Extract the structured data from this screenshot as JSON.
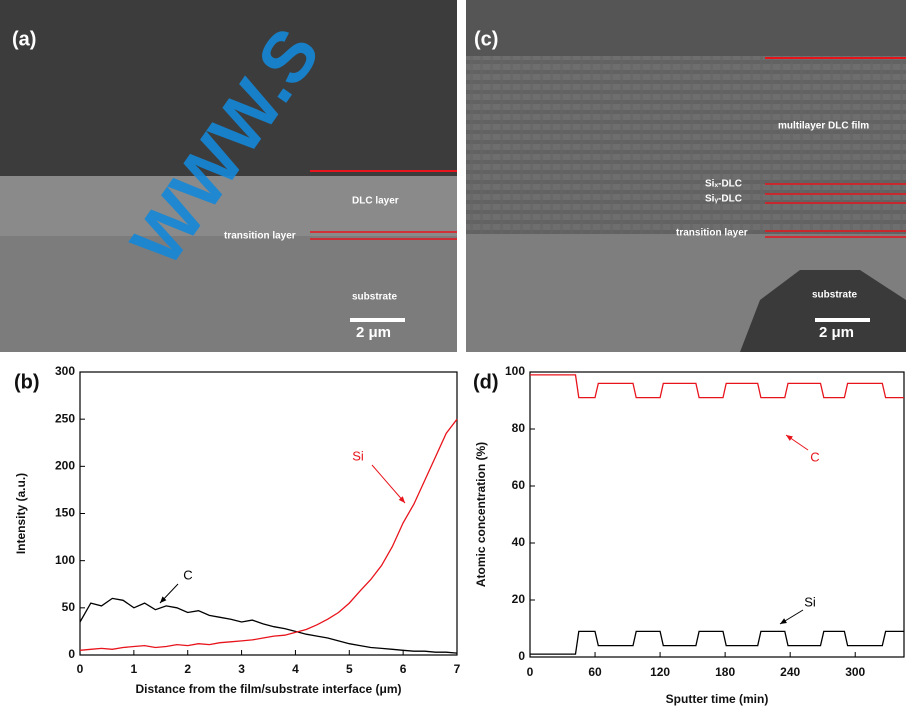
{
  "chart_data": [
    {
      "type": "line",
      "panel_label": "(b)",
      "x_label": "Distance from the film/substrate interface (μm)",
      "y_label": "Intensity (a.u.)",
      "x": [
        0,
        0.2,
        0.4,
        0.6,
        0.8,
        1.0,
        1.2,
        1.4,
        1.6,
        1.8,
        2.0,
        2.2,
        2.4,
        2.6,
        2.8,
        3.0,
        3.2,
        3.4,
        3.6,
        3.8,
        4.0,
        4.2,
        4.4,
        4.6,
        4.8,
        5.0,
        5.2,
        5.4,
        5.6,
        5.8,
        6.0,
        6.2,
        6.4,
        6.6,
        6.8,
        7.0
      ],
      "series": [
        {
          "name": "C",
          "color": "#000000",
          "values": [
            35,
            55,
            52,
            60,
            58,
            50,
            55,
            48,
            52,
            50,
            45,
            47,
            42,
            40,
            38,
            35,
            37,
            33,
            30,
            28,
            25,
            22,
            20,
            18,
            15,
            12,
            10,
            8,
            7,
            6,
            5,
            4,
            4,
            3,
            3,
            2
          ]
        },
        {
          "name": "Si",
          "color": "#e8141c",
          "values": [
            5,
            6,
            7,
            6,
            8,
            9,
            10,
            8,
            9,
            11,
            10,
            12,
            11,
            13,
            14,
            15,
            16,
            18,
            20,
            21,
            24,
            27,
            32,
            38,
            45,
            55,
            68,
            80,
            95,
            115,
            140,
            160,
            185,
            210,
            235,
            250
          ]
        }
      ],
      "xlim": [
        0,
        7
      ],
      "xticks": [
        0,
        1,
        2,
        3,
        4,
        5,
        6,
        7
      ],
      "ylim": [
        0,
        300
      ],
      "yticks": [
        0,
        50,
        100,
        150,
        200,
        250,
        300
      ]
    },
    {
      "type": "line",
      "panel_label": "(d)",
      "x_label": "Sputter time (min)",
      "y_label": "Atomic concentration (%)",
      "x": [
        0,
        42,
        45,
        60,
        63,
        95,
        98,
        120,
        123,
        153,
        156,
        178,
        181,
        210,
        213,
        235,
        238,
        268,
        271,
        290,
        293,
        325,
        328,
        345
      ],
      "series": [
        {
          "name": "C",
          "color": "#e8141c",
          "values": [
            99,
            99,
            91,
            91,
            96,
            96,
            91,
            91,
            96,
            96,
            91,
            91,
            96,
            96,
            91,
            91,
            96,
            96,
            91,
            91,
            96,
            96,
            91,
            91
          ]
        },
        {
          "name": "Si",
          "color": "#000000",
          "values": [
            1,
            1,
            9,
            9,
            4,
            4,
            9,
            9,
            4,
            4,
            9,
            9,
            4,
            4,
            9,
            9,
            4,
            4,
            9,
            9,
            4,
            4,
            9,
            9
          ]
        }
      ],
      "xlim": [
        0,
        345
      ],
      "xticks": [
        0,
        60,
        120,
        180,
        240,
        300
      ],
      "ylim": [
        0,
        100
      ],
      "yticks": [
        0,
        20,
        40,
        60,
        80,
        100
      ]
    }
  ],
  "images": [
    {
      "label": "(a)",
      "annotations": [
        "DLC layer",
        "transition layer",
        "substrate"
      ],
      "scale_bar": "2 μm"
    },
    {
      "label": "(c)",
      "annotations": [
        "multilayer DLC film",
        "Siₓ-DLC",
        "Siᵧ-DLC",
        "transition layer",
        "substrate"
      ],
      "scale_bar": "2 μm"
    }
  ],
  "watermark": "WWW.S"
}
